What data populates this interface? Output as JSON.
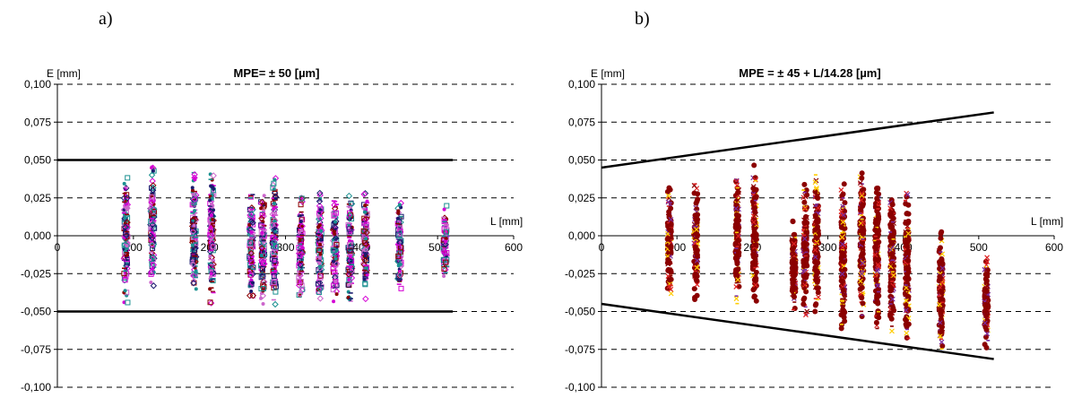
{
  "panels": [
    {
      "letter": "a)"
    },
    {
      "letter": "b)"
    }
  ],
  "chart_data": [
    {
      "type": "scatter",
      "title": "MPE= ± 50  [µm]",
      "xlabel": "L [mm]",
      "ylabel": "E [mm]",
      "xlim": [
        0,
        600
      ],
      "ylim": [
        -0.1,
        0.1
      ],
      "x_ticks": [
        0,
        100,
        200,
        300,
        400,
        500,
        600
      ],
      "y_ticks": [
        0.1,
        0.075,
        0.05,
        0.025,
        0.0,
        -0.025,
        -0.05,
        -0.075,
        -0.1
      ],
      "y_tick_labels": [
        "0,100",
        "0,075",
        "0,050",
        "0,025",
        "0,000",
        "-0,025",
        "-0,050",
        "-0,075",
        "-0,100"
      ],
      "grid": "horizontal dashed",
      "limit_lines": [
        {
          "x": [
            0,
            520
          ],
          "y": [
            0.05,
            0.05
          ]
        },
        {
          "x": [
            0,
            520
          ],
          "y": [
            -0.05,
            -0.05
          ]
        }
      ],
      "series_colors": [
        "#d400d4",
        "#1a1a6e",
        "#1a9090",
        "#8b0000",
        "#cc66cc"
      ],
      "columns": [
        {
          "x": 90,
          "min": -0.047,
          "max": 0.041
        },
        {
          "x": 125,
          "min": -0.035,
          "max": 0.048
        },
        {
          "x": 180,
          "min": -0.044,
          "max": 0.045
        },
        {
          "x": 203,
          "min": -0.046,
          "max": 0.047
        },
        {
          "x": 255,
          "min": -0.045,
          "max": 0.032
        },
        {
          "x": 270,
          "min": -0.046,
          "max": 0.028
        },
        {
          "x": 285,
          "min": -0.047,
          "max": 0.045
        },
        {
          "x": 320,
          "min": -0.044,
          "max": 0.032
        },
        {
          "x": 345,
          "min": -0.046,
          "max": 0.03
        },
        {
          "x": 365,
          "min": -0.046,
          "max": 0.031
        },
        {
          "x": 385,
          "min": -0.048,
          "max": 0.028
        },
        {
          "x": 405,
          "min": -0.043,
          "max": 0.03
        },
        {
          "x": 450,
          "min": -0.038,
          "max": 0.028
        },
        {
          "x": 510,
          "min": -0.031,
          "max": 0.021
        }
      ]
    },
    {
      "type": "scatter",
      "title": "MPE = ± 45 + L/14.28 [µm]",
      "xlabel": "L [mm]",
      "ylabel": "E [mm]",
      "xlim": [
        0,
        600
      ],
      "ylim": [
        -0.1,
        0.1
      ],
      "x_ticks": [
        0,
        100,
        200,
        300,
        400,
        500,
        600
      ],
      "y_ticks": [
        0.1,
        0.075,
        0.05,
        0.025,
        0.0,
        -0.025,
        -0.05,
        -0.075,
        -0.1
      ],
      "y_tick_labels": [
        "0,100",
        "0,075",
        "0,050",
        "0,025",
        "0,000",
        "-0,025",
        "-0,050",
        "-0,075",
        "-0,100"
      ],
      "grid": "horizontal dashed",
      "limit_lines": [
        {
          "x": [
            0,
            520
          ],
          "y": [
            0.045,
            0.0814
          ]
        },
        {
          "x": [
            0,
            520
          ],
          "y": [
            -0.045,
            -0.0814
          ]
        }
      ],
      "series_colors": [
        "#8b0000",
        "#7b2a9b",
        "#ffcc00",
        "#dd2222"
      ],
      "columns": [
        {
          "x": 90,
          "min": -0.044,
          "max": 0.034
        },
        {
          "x": 125,
          "min": -0.046,
          "max": 0.035
        },
        {
          "x": 180,
          "min": -0.046,
          "max": 0.044
        },
        {
          "x": 203,
          "min": -0.045,
          "max": 0.05
        },
        {
          "x": 255,
          "min": -0.051,
          "max": 0.014
        },
        {
          "x": 270,
          "min": -0.055,
          "max": 0.036
        },
        {
          "x": 285,
          "min": -0.053,
          "max": 0.046
        },
        {
          "x": 320,
          "min": -0.066,
          "max": 0.038
        },
        {
          "x": 345,
          "min": -0.059,
          "max": 0.046
        },
        {
          "x": 365,
          "min": -0.065,
          "max": 0.044
        },
        {
          "x": 385,
          "min": -0.066,
          "max": 0.034
        },
        {
          "x": 405,
          "min": -0.072,
          "max": 0.03
        },
        {
          "x": 450,
          "min": -0.079,
          "max": 0.006
        },
        {
          "x": 510,
          "min": -0.077,
          "max": -0.011
        }
      ]
    }
  ]
}
